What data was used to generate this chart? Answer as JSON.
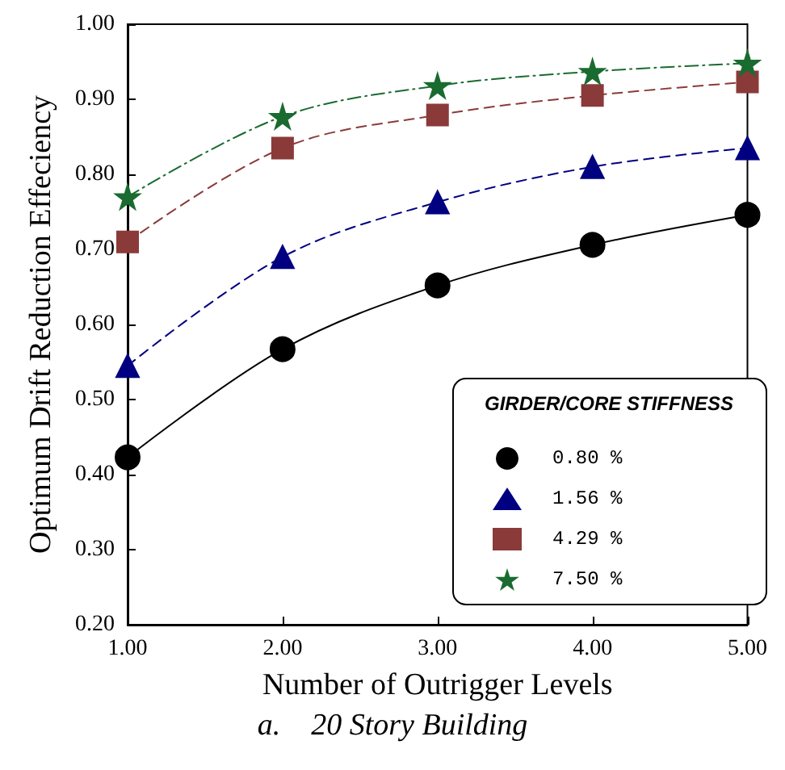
{
  "chart_data": {
    "type": "line",
    "xlabel": "Number of Outrigger Levels",
    "ylabel": "Optimum Drift Reduction Effeciency",
    "legend_title": "GIRDER/CORE STIFFNESS",
    "annotations": [
      "a.    20 Story Building"
    ],
    "x": [
      1,
      2,
      3,
      4,
      5
    ],
    "series": [
      {
        "name": "0.80 %",
        "color": "#000000",
        "marker": "circle",
        "line_style": "solid",
        "values": [
          0.423,
          0.567,
          0.652,
          0.706,
          0.746
        ]
      },
      {
        "name": "1.56 %",
        "color": "#000080",
        "marker": "triangle",
        "line_style": "dashed",
        "values": [
          0.545,
          0.69,
          0.763,
          0.81,
          0.835
        ]
      },
      {
        "name": "4.29 %",
        "color": "#8b3a3a",
        "marker": "square",
        "line_style": "dashed",
        "values": [
          0.71,
          0.835,
          0.879,
          0.905,
          0.923
        ]
      },
      {
        "name": "7.50 %",
        "color": "#1a6b30",
        "marker": "star",
        "line_style": "dotted",
        "values": [
          0.77,
          0.877,
          0.918,
          0.937,
          0.948
        ]
      }
    ],
    "xlim": [
      1,
      5
    ],
    "xticks": [
      {
        "value": 1,
        "label": "1.00"
      },
      {
        "value": 2,
        "label": "2.00"
      },
      {
        "value": 3,
        "label": "3.00"
      },
      {
        "value": 4,
        "label": "4.00"
      },
      {
        "value": 5,
        "label": "5.00"
      }
    ],
    "ylim": [
      0.2,
      1
    ],
    "yticks": [
      {
        "value": 0.2,
        "label": "0.20"
      },
      {
        "value": 0.3,
        "label": "0.30"
      },
      {
        "value": 0.4,
        "label": "0.40"
      },
      {
        "value": 0.5,
        "label": "0.50"
      },
      {
        "value": 0.6,
        "label": "0.60"
      },
      {
        "value": 0.7,
        "label": "0.70"
      },
      {
        "value": 0.8,
        "label": "0.80"
      },
      {
        "value": 0.9,
        "label": "0.90"
      },
      {
        "value": 1,
        "label": "1.00"
      }
    ],
    "grid": false,
    "legend": "bottom right"
  }
}
